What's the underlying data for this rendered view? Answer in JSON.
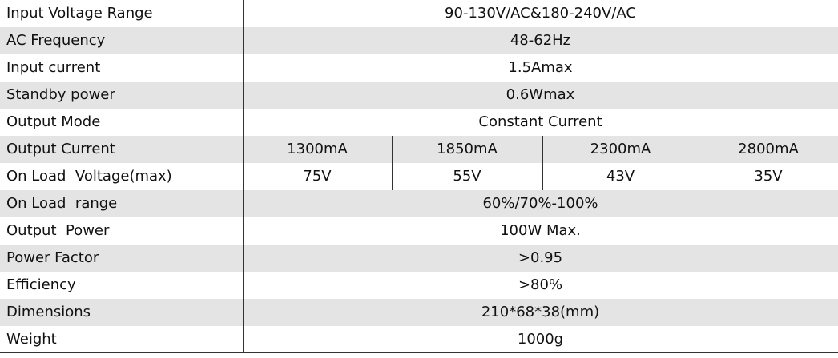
{
  "table": {
    "rows": [
      {
        "label": "Input Voltage Range",
        "value": "90-130V/AC&180-240V/AC"
      },
      {
        "label": "AC Frequency",
        "value": "48-62Hz"
      },
      {
        "label": "Input current",
        "value": "1.5Amax"
      },
      {
        "label": "Standby power",
        "value": "0.6Wmax"
      },
      {
        "label": "Output Mode",
        "value": "Constant Current"
      },
      {
        "label": "Output Current",
        "values": [
          "1300mA",
          "1850mA",
          "2300mA",
          "2800mA"
        ]
      },
      {
        "label": "On Load  Voltage(max)",
        "values": [
          "75V",
          "55V",
          "43V",
          "35V"
        ]
      },
      {
        "label": "On Load  range",
        "value": "60%/70%-100%"
      },
      {
        "label": "Output  Power",
        "value": "100W Max."
      },
      {
        "label": "Power Factor",
        "value": ">0.95"
      },
      {
        "label": "Efficiency",
        "value": ">80%"
      },
      {
        "label": "Dimensions",
        "value": "210*68*38(mm)"
      },
      {
        "label": "Weight",
        "value": "1000g"
      }
    ]
  }
}
